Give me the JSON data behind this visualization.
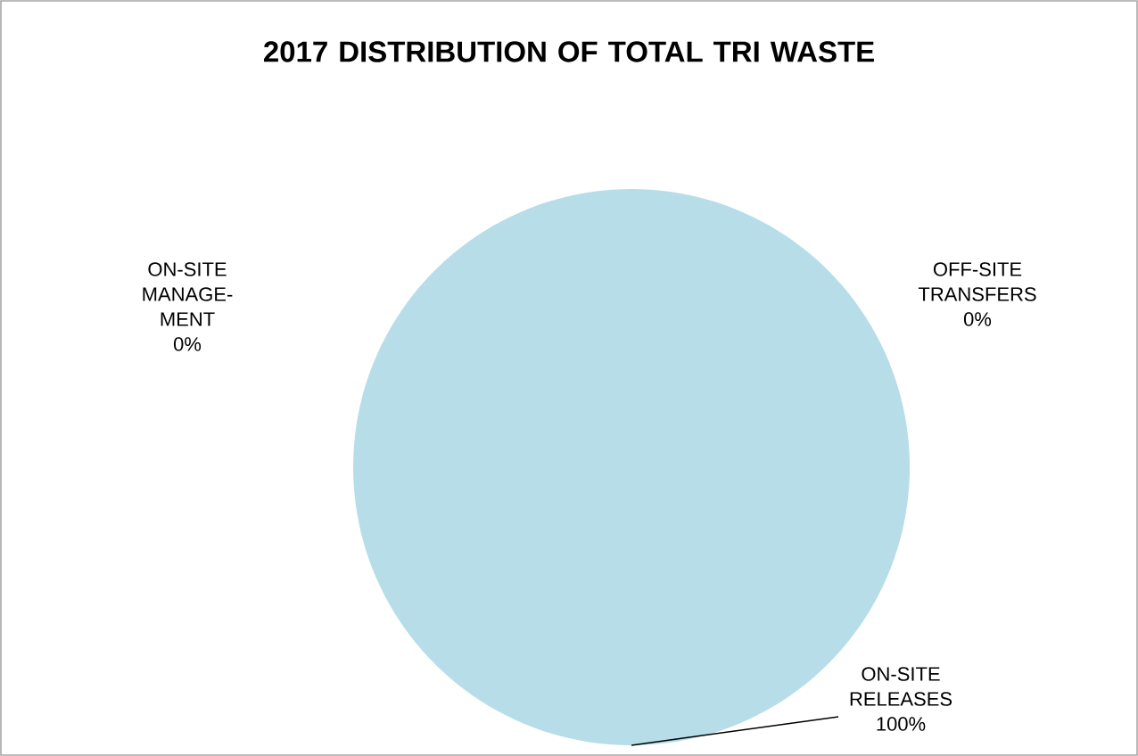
{
  "chart_data": {
    "type": "pie",
    "title": "2017 DISTRIBUTION OF TOTAL TRI WASTE",
    "categories": [
      "ON-SITE RELEASES",
      "OFF-SITE TRANSFERS",
      "ON-SITE MANAGE-MENT"
    ],
    "values": [
      100,
      0,
      0
    ],
    "colors": [
      "#b7dde8",
      "#4f81bd",
      "#c0504d"
    ],
    "value_labels": [
      "100%",
      "0%",
      "0%"
    ]
  }
}
